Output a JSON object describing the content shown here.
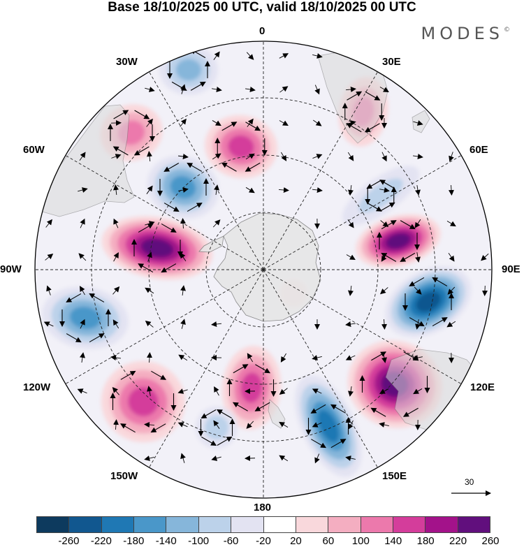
{
  "title": "Base 18/10/2025 00 UTC, valid 18/10/2025 00 UTC",
  "brand": "MODES",
  "brand_mark": "©",
  "labels": {
    "lon_0": "0",
    "lon_30e": "30E",
    "lon_60e": "60E",
    "lon_90e": "90E",
    "lon_120e": "120E",
    "lon_150e": "150E",
    "lon_180": "180",
    "lon_150w": "150W",
    "lon_120w": "120W",
    "lon_90w": "90W",
    "lon_60w": "60W",
    "lon_30w": "30W"
  },
  "vector_scale": "30",
  "colorbar": {
    "colors": [
      "#0d3a5e",
      "#11578f",
      "#1f78b4",
      "#4a97c9",
      "#86b6da",
      "#bcd2ea",
      "#e3e3f2",
      "#ffffff",
      "#f9d8dc",
      "#f4aec1",
      "#ec79ac",
      "#d43d9b",
      "#a3128a",
      "#610f7d"
    ],
    "ticks": [
      "-260",
      "-220",
      "-180",
      "-140",
      "-100",
      "-60",
      "-20",
      "20",
      "60",
      "100",
      "140",
      "180",
      "220",
      "260"
    ]
  }
}
